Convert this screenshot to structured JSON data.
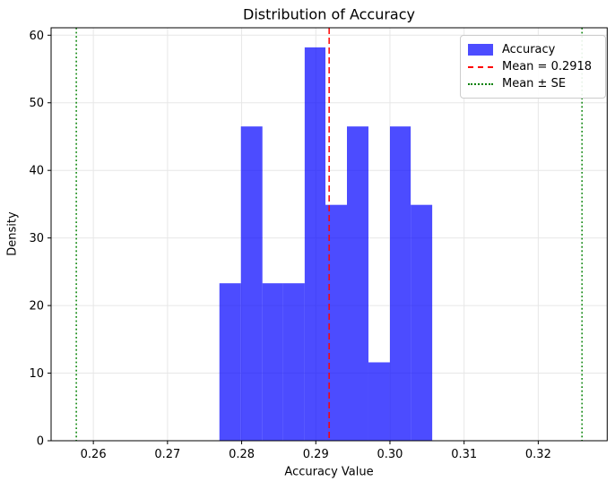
{
  "title": "Distribution of Accuracy",
  "xlabel": "Accuracy Value",
  "ylabel": "Density",
  "legend": {
    "items": [
      {
        "label": "Accuracy",
        "marker": "blue-patch"
      },
      {
        "label": "Mean = 0.2918",
        "marker": "red-dashed-line"
      },
      {
        "label": "Mean ± SE",
        "marker": "green-dotted-line"
      }
    ]
  },
  "chart_data": {
    "type": "bar",
    "subtype": "histogram",
    "title": "Distribution of Accuracy",
    "xlabel": "Accuracy Value",
    "ylabel": "Density",
    "bin_edges": [
      0.277,
      0.2799,
      0.2828,
      0.2856,
      0.2885,
      0.2913,
      0.2942,
      0.2971,
      0.3,
      0.3028,
      0.3057
    ],
    "densities": [
      23.3,
      46.5,
      23.3,
      23.3,
      58.2,
      34.9,
      46.5,
      11.6,
      46.5,
      34.9
    ],
    "mean": 0.2918,
    "se": 0.0341,
    "mean_minus_se": 0.2577,
    "mean_plus_se": 0.3259,
    "xlim": [
      0.2543,
      0.3293
    ],
    "ylim": [
      0,
      61.1
    ],
    "x_ticks": [
      0.26,
      0.27,
      0.28,
      0.29,
      0.3,
      0.31,
      0.32
    ],
    "x_tick_labels": [
      "0.26",
      "0.27",
      "0.28",
      "0.29",
      "0.30",
      "0.31",
      "0.32"
    ],
    "y_ticks": [
      0,
      10,
      20,
      30,
      40,
      50,
      60
    ],
    "y_tick_labels": [
      "0",
      "10",
      "20",
      "30",
      "40",
      "50",
      "60"
    ],
    "grid": true,
    "legend_position": "upper right",
    "colors": {
      "bar": "#0000ff",
      "bar_alpha": 0.7,
      "mean_line": "#ff0000",
      "se_line": "#008000",
      "grid": "#e7e7e7",
      "spine": "#000000",
      "text": "#000000"
    }
  }
}
